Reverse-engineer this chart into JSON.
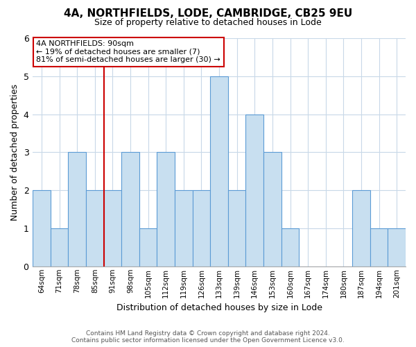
{
  "title": "4A, NORTHFIELDS, LODE, CAMBRIDGE, CB25 9EU",
  "subtitle": "Size of property relative to detached houses in Lode",
  "xlabel": "Distribution of detached houses by size in Lode",
  "ylabel": "Number of detached properties",
  "bar_color": "#c8dff0",
  "bar_edge_color": "#5b9bd5",
  "background_color": "#ffffff",
  "grid_color": "#c8d8e8",
  "bins": [
    "64sqm",
    "71sqm",
    "78sqm",
    "85sqm",
    "91sqm",
    "98sqm",
    "105sqm",
    "112sqm",
    "119sqm",
    "126sqm",
    "133sqm",
    "139sqm",
    "146sqm",
    "153sqm",
    "160sqm",
    "167sqm",
    "174sqm",
    "180sqm",
    "187sqm",
    "194sqm",
    "201sqm"
  ],
  "values": [
    2,
    1,
    3,
    2,
    2,
    3,
    1,
    3,
    2,
    2,
    5,
    2,
    4,
    3,
    1,
    0,
    0,
    0,
    2,
    1,
    1
  ],
  "ylim": [
    0,
    6
  ],
  "yticks": [
    0,
    1,
    2,
    3,
    4,
    5,
    6
  ],
  "annotation_title": "4A NORTHFIELDS: 90sqm",
  "annotation_line1": "← 19% of detached houses are smaller (7)",
  "annotation_line2": "81% of semi-detached houses are larger (30) →",
  "reference_line_index": 4,
  "reference_line_color": "#cc0000",
  "annotation_box_color": "#ffffff",
  "annotation_box_edge_color": "#cc0000",
  "footer_line1": "Contains HM Land Registry data © Crown copyright and database right 2024.",
  "footer_line2": "Contains public sector information licensed under the Open Government Licence v3.0."
}
